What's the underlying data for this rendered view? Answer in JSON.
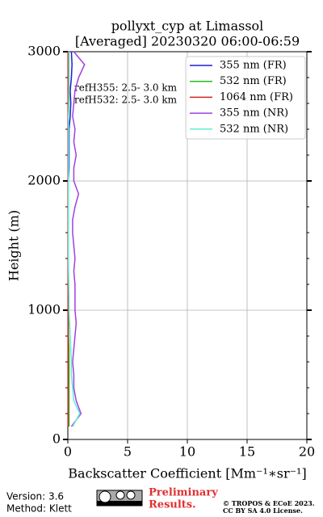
{
  "chart_data": {
    "type": "line",
    "title": [
      "pollyxt_cyp at Limassol",
      "[Averaged] 20230320 06:00-06:59"
    ],
    "xlabel": "Backscatter Coefficient [Mm⁻¹∗sr⁻¹]",
    "ylabel": "Height (m)",
    "annotations": [
      "refH355:  2.5- 3.0 km",
      "refH532:  2.5- 3.0 km"
    ],
    "y": [
      100,
      200,
      300,
      400,
      500,
      600,
      700,
      800,
      900,
      1000,
      1100,
      1200,
      1300,
      1400,
      1500,
      1600,
      1700,
      1800,
      1900,
      2000,
      2100,
      2200,
      2300,
      2400,
      2500,
      2600,
      2700,
      2800,
      2900,
      3000
    ],
    "series": [
      {
        "name": "355 nm (FR)",
        "color": "#1f1fd6",
        "values": [
          0.05,
          0.05,
          0.05,
          0.05,
          0.05,
          0.05,
          0.05,
          0.05,
          0.05,
          0.05,
          0.05,
          0.05,
          0.05,
          0.05,
          0.05,
          0.05,
          0.05,
          0.05,
          0.05,
          0.05,
          0.1,
          0.1,
          0.1,
          0.1,
          0.2,
          0.25,
          0.2,
          0.3,
          0.35,
          0.3
        ]
      },
      {
        "name": "532 nm (FR)",
        "color": "#1fbf1f",
        "values": [
          0.1,
          0.1,
          0.1,
          0.1,
          0.1,
          0.1,
          0.1,
          0.05,
          0.05,
          0.05,
          0.05,
          0.05,
          0.05,
          0.05,
          0.05,
          0.05,
          0.05,
          0.05,
          0.05,
          0.05,
          0.05,
          0.05,
          0.05,
          0.05,
          0.05,
          0.1,
          0.1,
          0.1,
          0.1,
          0.1
        ]
      },
      {
        "name": "1064 nm (FR)",
        "color": "#d62020",
        "values": [
          0.02,
          0.02,
          0.02,
          0.02,
          0.02,
          0.02,
          0.02,
          0.02,
          0.02,
          0.02,
          0.02,
          0.02,
          0.02,
          0.02,
          0.02,
          0.02,
          0.02,
          0.02,
          0.02,
          0.02,
          0.02,
          0.02,
          0.02,
          0.02,
          0.02,
          0.02,
          0.02,
          0.02,
          0.02,
          0.02
        ]
      },
      {
        "name": "355 nm (NR)",
        "color": "#a040e0",
        "values": [
          0.3,
          1.1,
          0.7,
          0.5,
          0.5,
          0.4,
          0.5,
          0.6,
          0.7,
          0.6,
          0.6,
          0.6,
          0.5,
          0.6,
          0.5,
          0.4,
          0.4,
          0.6,
          0.9,
          0.5,
          0.5,
          0.7,
          0.5,
          0.6,
          0.4,
          0.5,
          0.6,
          0.9,
          1.4,
          0.5
        ]
      },
      {
        "name": "532 nm (NR)",
        "color": "#5ff0d0",
        "values": [
          0.4,
          1.0,
          0.5,
          0.4,
          0.3,
          0.3,
          0.25,
          0.2,
          0.15,
          0.1,
          0.1,
          0.08,
          0.06,
          0.05,
          0.05,
          0.05,
          0.05,
          0.05,
          0.05,
          0.05,
          0.05,
          0.05,
          0.05,
          0.05,
          0.05,
          0.08,
          0.1,
          0.1,
          0.1,
          0.1
        ]
      }
    ],
    "xlim": [
      0,
      20
    ],
    "ylim": [
      0,
      3000
    ],
    "xticks": [
      0,
      5,
      10,
      15,
      20
    ],
    "yticks": [
      0,
      1000,
      2000,
      3000
    ],
    "grid": true,
    "legend": "upper right"
  },
  "footer": {
    "version": "Version: 3.6",
    "method": "Method: Klett",
    "preliminary": [
      "Preliminary",
      "Results."
    ],
    "license": [
      "© TROPOS & ECoE 2023.",
      "CC BY SA 4.0 License."
    ]
  }
}
